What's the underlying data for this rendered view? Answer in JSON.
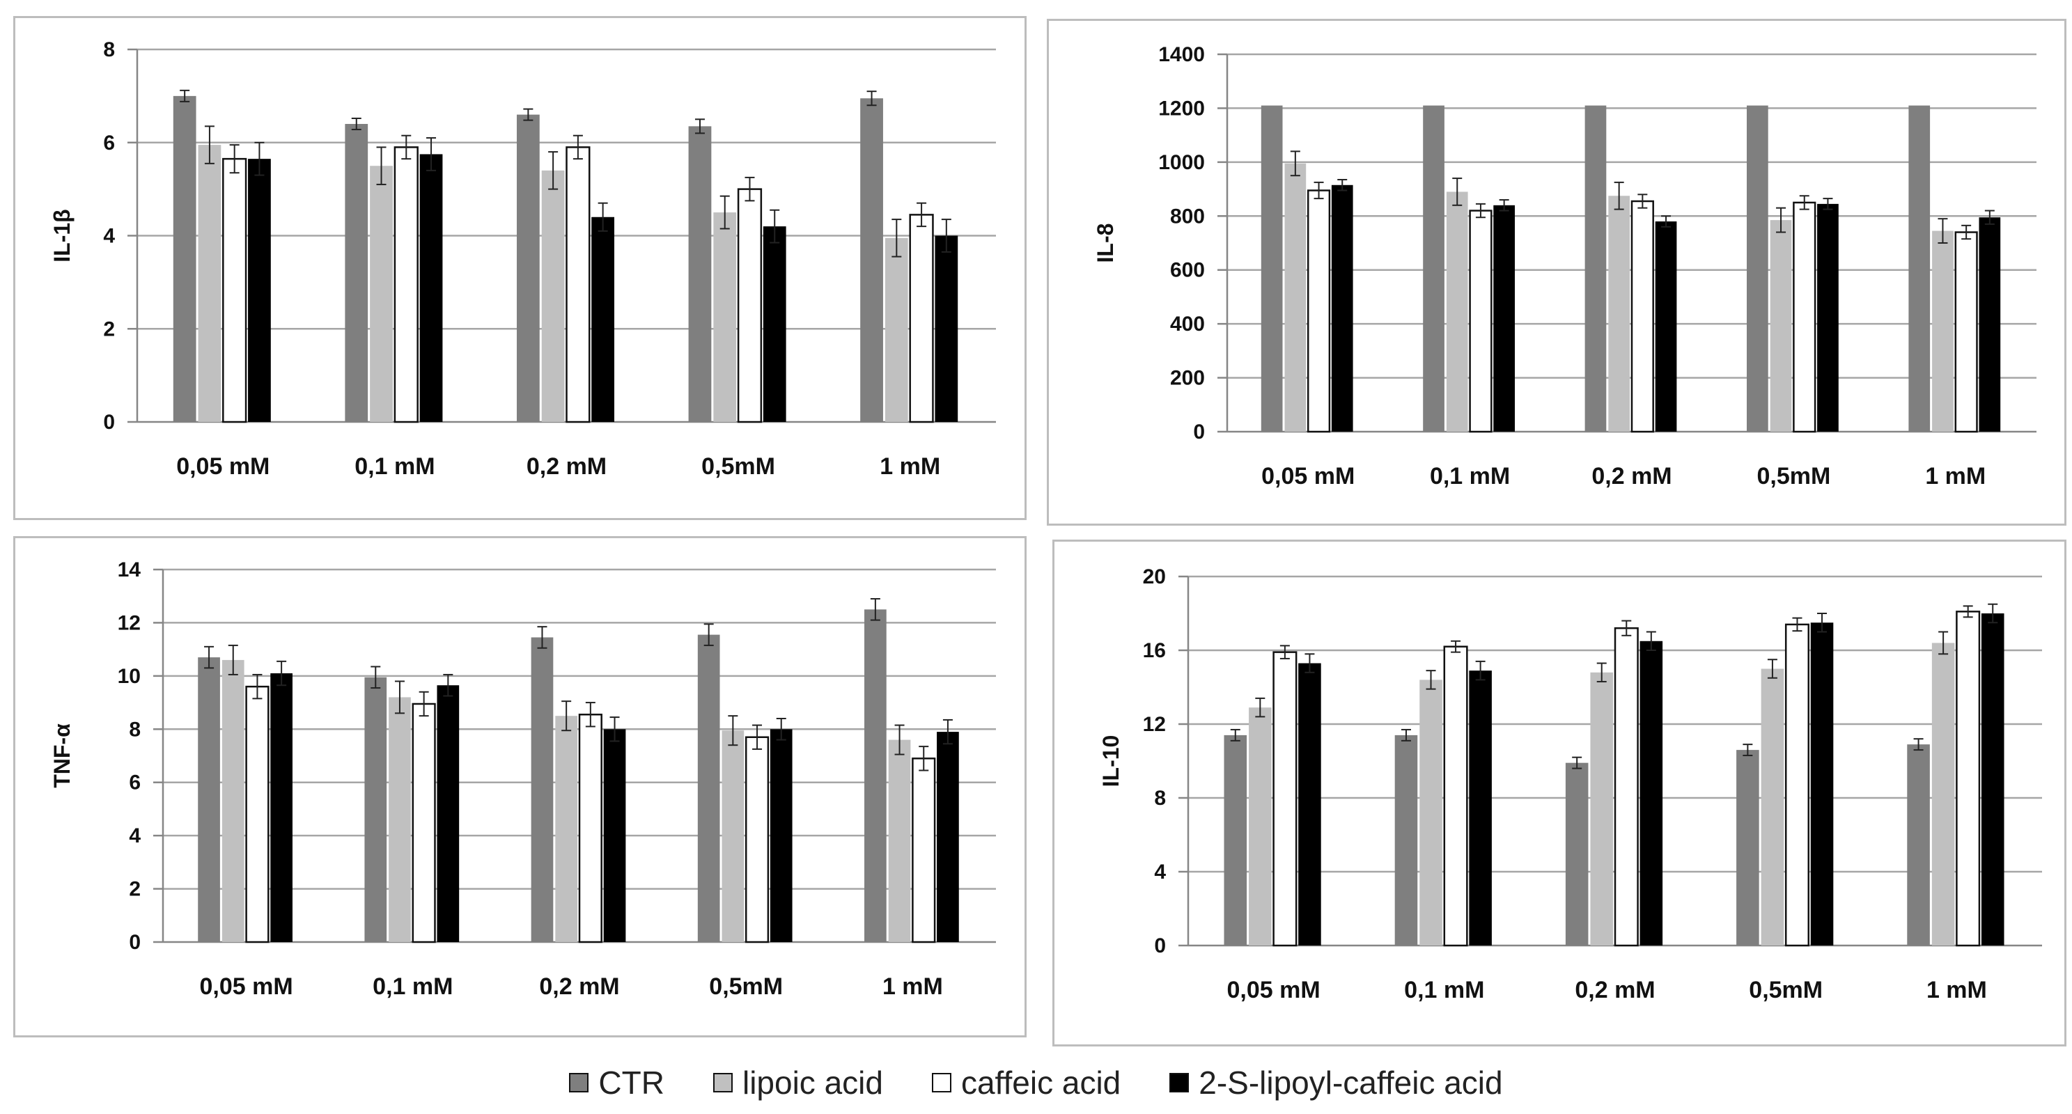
{
  "chart_data": [
    {
      "type": "bar",
      "ylabel": "IL-1β",
      "ylim": [
        0,
        8
      ],
      "yticks": [
        0,
        2,
        4,
        6,
        8
      ],
      "grid": true,
      "categories": [
        "0,05 mM",
        "0,1 mM",
        "0,2 mM",
        "0,5mM",
        "1 mM"
      ],
      "series": [
        {
          "name": "CTR",
          "values": [
            7.0,
            6.4,
            6.6,
            6.35,
            6.95
          ],
          "errors": [
            0.12,
            0.12,
            0.12,
            0.15,
            0.15
          ]
        },
        {
          "name": "lipoic acid",
          "values": [
            5.95,
            5.5,
            5.4,
            4.5,
            3.95
          ],
          "errors": [
            0.4,
            0.4,
            0.4,
            0.35,
            0.4
          ]
        },
        {
          "name": "caffeic acid",
          "values": [
            5.65,
            5.9,
            5.9,
            5.0,
            4.45
          ],
          "errors": [
            0.3,
            0.25,
            0.25,
            0.25,
            0.25
          ]
        },
        {
          "name": "2-S-lipoyl-caffeic acid",
          "values": [
            5.65,
            5.75,
            4.4,
            4.2,
            4.0
          ],
          "errors": [
            0.35,
            0.35,
            0.3,
            0.35,
            0.35
          ]
        }
      ]
    },
    {
      "type": "bar",
      "ylabel": "IL-8",
      "ylim": [
        0,
        1400
      ],
      "yticks": [
        0,
        200,
        400,
        600,
        800,
        1000,
        1200,
        1400
      ],
      "grid": true,
      "categories": [
        "0,05 mM",
        "0,1 mM",
        "0,2 mM",
        "0,5mM",
        "1 mM"
      ],
      "series": [
        {
          "name": "CTR",
          "values": [
            1210,
            1210,
            1210,
            1210,
            1210
          ],
          "errors": [
            0,
            0,
            0,
            0,
            0
          ]
        },
        {
          "name": "lipoic acid",
          "values": [
            995,
            890,
            875,
            785,
            745
          ],
          "errors": [
            45,
            50,
            50,
            45,
            45
          ]
        },
        {
          "name": "caffeic acid",
          "values": [
            895,
            820,
            855,
            850,
            740
          ],
          "errors": [
            30,
            25,
            25,
            25,
            25
          ]
        },
        {
          "name": "2-S-lipoyl-caffeic acid",
          "values": [
            915,
            840,
            780,
            845,
            795
          ],
          "errors": [
            20,
            20,
            20,
            20,
            25
          ]
        }
      ]
    },
    {
      "type": "bar",
      "ylabel": "TNF-α",
      "ylim": [
        0,
        14
      ],
      "yticks": [
        0,
        2,
        4,
        6,
        8,
        10,
        12,
        14
      ],
      "grid": true,
      "categories": [
        "0,05 mM",
        "0,1 mM",
        "0,2 mM",
        "0,5mM",
        "1 mM"
      ],
      "series": [
        {
          "name": "CTR",
          "values": [
            10.7,
            9.95,
            11.45,
            11.55,
            12.5
          ],
          "errors": [
            0.4,
            0.4,
            0.4,
            0.4,
            0.4
          ]
        },
        {
          "name": "lipoic acid",
          "values": [
            10.6,
            9.2,
            8.5,
            7.95,
            7.6
          ],
          "errors": [
            0.55,
            0.6,
            0.55,
            0.55,
            0.55
          ]
        },
        {
          "name": "caffeic acid",
          "values": [
            9.6,
            8.95,
            8.55,
            7.7,
            6.9
          ],
          "errors": [
            0.45,
            0.45,
            0.45,
            0.45,
            0.45
          ]
        },
        {
          "name": "2-S-lipoyl-caffeic acid",
          "values": [
            10.1,
            9.65,
            8.0,
            8.0,
            7.9
          ],
          "errors": [
            0.45,
            0.4,
            0.45,
            0.4,
            0.45
          ]
        }
      ]
    },
    {
      "type": "bar",
      "ylabel": "IL-10",
      "ylim": [
        0,
        20
      ],
      "yticks": [
        0,
        4,
        8,
        12,
        16,
        20
      ],
      "grid": true,
      "categories": [
        "0,05 mM",
        "0,1 mM",
        "0,2 mM",
        "0,5mM",
        "1 mM"
      ],
      "series": [
        {
          "name": "CTR",
          "values": [
            11.4,
            11.4,
            9.9,
            10.6,
            10.9
          ],
          "errors": [
            0.3,
            0.3,
            0.3,
            0.3,
            0.3
          ]
        },
        {
          "name": "lipoic acid",
          "values": [
            12.9,
            14.4,
            14.8,
            15.0,
            16.4
          ],
          "errors": [
            0.5,
            0.5,
            0.5,
            0.5,
            0.6
          ]
        },
        {
          "name": "caffeic acid",
          "values": [
            15.9,
            16.2,
            17.2,
            17.4,
            18.1
          ],
          "errors": [
            0.35,
            0.3,
            0.4,
            0.35,
            0.3
          ]
        },
        {
          "name": "2-S-lipoyl-caffeic acid",
          "values": [
            15.3,
            14.9,
            16.5,
            17.5,
            18.0
          ],
          "errors": [
            0.5,
            0.5,
            0.5,
            0.5,
            0.5
          ]
        }
      ]
    }
  ],
  "legend": {
    "items": [
      {
        "label": "CTR",
        "color": "#7f7f7f"
      },
      {
        "label": "lipoic acid",
        "color": "#c0c0c0"
      },
      {
        "label": "caffeic acid",
        "color": "#ffffff"
      },
      {
        "label": "2-S-lipoyl-caffeic acid",
        "color": "#000000"
      }
    ]
  },
  "colors": {
    "series": [
      "#7f7f7f",
      "#c0c0c0",
      "#ffffff",
      "#000000"
    ],
    "grid": "#a6a6a6",
    "axis": "#868686"
  }
}
